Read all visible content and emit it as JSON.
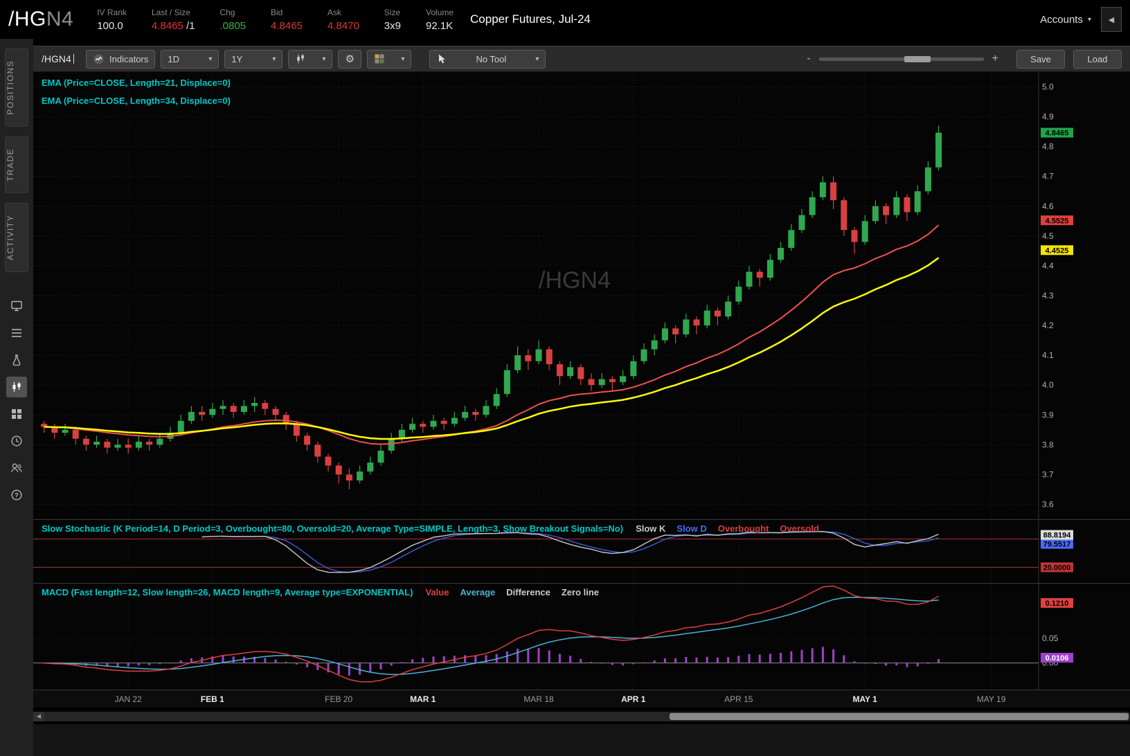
{
  "header": {
    "symbol_root": "/HG",
    "symbol_suffix": "N4",
    "stats": [
      {
        "label": "IV Rank",
        "value": "100.0",
        "color": "#e8e8e8"
      },
      {
        "label": "Last / Size",
        "value": "4.8465",
        "suffix": "/1",
        "color": "#e03535"
      },
      {
        "label": "Chg",
        "value": ".0805",
        "color": "#3cb53c"
      },
      {
        "label": "Bid",
        "value": "4.8465",
        "color": "#e03535"
      },
      {
        "label": "Ask",
        "value": "4.8470",
        "color": "#e03535"
      },
      {
        "label": "Size",
        "value": "3x9",
        "color": "#e8e8e8"
      },
      {
        "label": "Volume",
        "value": "92.1K",
        "color": "#e8e8e8"
      }
    ],
    "description": "Copper Futures, Jul-24",
    "accounts_label": "Accounts"
  },
  "sidebar": {
    "tabs": [
      {
        "label": "POSITIONS"
      },
      {
        "label": "TRADE"
      },
      {
        "label": "ACTIVITY"
      }
    ],
    "icons": [
      {
        "name": "news",
        "active": false
      },
      {
        "name": "list",
        "active": false
      },
      {
        "name": "flask",
        "active": false
      },
      {
        "name": "charts",
        "active": true
      },
      {
        "name": "grid",
        "active": false
      },
      {
        "name": "clock",
        "active": false
      },
      {
        "name": "people",
        "active": false
      },
      {
        "name": "help",
        "active": false
      }
    ]
  },
  "toolbar": {
    "symbol_input": "/HGN4",
    "indicators_label": "Indicators",
    "timeframe": "1D",
    "range": "1Y",
    "no_tool_label": "No Tool",
    "zoom_minus": "-",
    "zoom_plus": "+",
    "save_label": "Save",
    "load_label": "Load"
  },
  "chart_data": {
    "type": "candlestick",
    "watermark": "/HGN4",
    "study_label_color": "#00c8c8",
    "studies_labels": [
      "EMA (Price=CLOSE, Length=21, Displace=0)",
      "EMA (Price=CLOSE, Length=34, Displace=0)"
    ],
    "up_color": "#2fa84f",
    "down_color": "#d94040",
    "ema21_period": 21,
    "ema34_period": 34,
    "ema21_color": "#f05050",
    "ema34_color": "#ffff00",
    "price_axis": {
      "min": 3.55,
      "max": 5.05,
      "ticks": [
        "5.0",
        "4.9",
        "4.8",
        "4.7",
        "4.6",
        "4.5",
        "4.4",
        "4.3",
        "4.2",
        "4.1",
        "4.0",
        "3.9",
        "3.8",
        "3.7",
        "3.6"
      ]
    },
    "total_slots": 95,
    "time_labels": [
      {
        "label": "JAN 22",
        "slot": 8,
        "bold": false
      },
      {
        "label": "FEB 1",
        "slot": 16,
        "bold": true
      },
      {
        "label": "FEB 20",
        "slot": 28,
        "bold": false
      },
      {
        "label": "MAR 1",
        "slot": 36,
        "bold": true
      },
      {
        "label": "MAR 18",
        "slot": 47,
        "bold": false
      },
      {
        "label": "APR 1",
        "slot": 56,
        "bold": true
      },
      {
        "label": "APR 15",
        "slot": 66,
        "bold": false
      },
      {
        "label": "MAY 1",
        "slot": 78,
        "bold": true
      },
      {
        "label": "MAY 19",
        "slot": 90,
        "bold": false
      }
    ],
    "candles": [
      [
        3.87,
        3.88,
        3.84,
        3.86
      ],
      [
        3.86,
        3.87,
        3.82,
        3.84
      ],
      [
        3.84,
        3.87,
        3.83,
        3.85
      ],
      [
        3.85,
        3.86,
        3.8,
        3.82
      ],
      [
        3.82,
        3.83,
        3.78,
        3.8
      ],
      [
        3.8,
        3.83,
        3.79,
        3.81
      ],
      [
        3.81,
        3.82,
        3.77,
        3.79
      ],
      [
        3.79,
        3.82,
        3.78,
        3.8
      ],
      [
        3.8,
        3.82,
        3.77,
        3.79
      ],
      [
        3.79,
        3.83,
        3.78,
        3.81
      ],
      [
        3.81,
        3.82,
        3.78,
        3.8
      ],
      [
        3.8,
        3.84,
        3.79,
        3.82
      ],
      [
        3.82,
        3.86,
        3.81,
        3.84
      ],
      [
        3.84,
        3.9,
        3.83,
        3.88
      ],
      [
        3.88,
        3.93,
        3.87,
        3.91
      ],
      [
        3.91,
        3.93,
        3.88,
        3.9
      ],
      [
        3.9,
        3.94,
        3.89,
        3.92
      ],
      [
        3.92,
        3.95,
        3.9,
        3.93
      ],
      [
        3.93,
        3.94,
        3.89,
        3.91
      ],
      [
        3.91,
        3.95,
        3.9,
        3.93
      ],
      [
        3.93,
        3.96,
        3.91,
        3.94
      ],
      [
        3.94,
        3.95,
        3.9,
        3.92
      ],
      [
        3.92,
        3.93,
        3.88,
        3.9
      ],
      [
        3.9,
        3.91,
        3.85,
        3.87
      ],
      [
        3.87,
        3.88,
        3.81,
        3.83
      ],
      [
        3.83,
        3.84,
        3.78,
        3.8
      ],
      [
        3.8,
        3.81,
        3.74,
        3.76
      ],
      [
        3.76,
        3.77,
        3.71,
        3.73
      ],
      [
        3.73,
        3.74,
        3.67,
        3.7
      ],
      [
        3.7,
        3.72,
        3.65,
        3.68
      ],
      [
        3.68,
        3.73,
        3.67,
        3.71
      ],
      [
        3.71,
        3.76,
        3.7,
        3.74
      ],
      [
        3.74,
        3.8,
        3.73,
        3.78
      ],
      [
        3.78,
        3.84,
        3.77,
        3.82
      ],
      [
        3.82,
        3.87,
        3.81,
        3.85
      ],
      [
        3.85,
        3.89,
        3.84,
        3.87
      ],
      [
        3.87,
        3.88,
        3.84,
        3.86
      ],
      [
        3.86,
        3.9,
        3.85,
        3.88
      ],
      [
        3.88,
        3.89,
        3.85,
        3.87
      ],
      [
        3.87,
        3.91,
        3.86,
        3.89
      ],
      [
        3.89,
        3.93,
        3.88,
        3.91
      ],
      [
        3.91,
        3.92,
        3.88,
        3.9
      ],
      [
        3.9,
        3.95,
        3.89,
        3.93
      ],
      [
        3.93,
        3.99,
        3.92,
        3.97
      ],
      [
        3.97,
        4.07,
        3.96,
        4.05
      ],
      [
        4.05,
        4.13,
        4.04,
        4.1
      ],
      [
        4.1,
        4.12,
        4.05,
        4.08
      ],
      [
        4.08,
        4.15,
        4.07,
        4.12
      ],
      [
        4.12,
        4.13,
        4.05,
        4.07
      ],
      [
        4.07,
        4.08,
        4.0,
        4.03
      ],
      [
        4.03,
        4.08,
        4.02,
        4.06
      ],
      [
        4.06,
        4.07,
        4.0,
        4.02
      ],
      [
        4.02,
        4.04,
        3.98,
        4.0
      ],
      [
        4.0,
        4.04,
        3.99,
        4.02
      ],
      [
        4.02,
        4.03,
        3.98,
        4.01
      ],
      [
        4.01,
        4.05,
        4.0,
        4.03
      ],
      [
        4.03,
        4.1,
        4.02,
        4.08
      ],
      [
        4.08,
        4.14,
        4.07,
        4.12
      ],
      [
        4.12,
        4.17,
        4.1,
        4.15
      ],
      [
        4.15,
        4.21,
        4.14,
        4.19
      ],
      [
        4.19,
        4.2,
        4.14,
        4.17
      ],
      [
        4.17,
        4.24,
        4.16,
        4.22
      ],
      [
        4.22,
        4.23,
        4.17,
        4.2
      ],
      [
        4.2,
        4.27,
        4.19,
        4.25
      ],
      [
        4.25,
        4.26,
        4.2,
        4.23
      ],
      [
        4.23,
        4.3,
        4.22,
        4.28
      ],
      [
        4.28,
        4.35,
        4.27,
        4.33
      ],
      [
        4.33,
        4.4,
        4.32,
        4.38
      ],
      [
        4.38,
        4.39,
        4.33,
        4.36
      ],
      [
        4.36,
        4.44,
        4.35,
        4.42
      ],
      [
        4.42,
        4.48,
        4.41,
        4.46
      ],
      [
        4.46,
        4.54,
        4.45,
        4.52
      ],
      [
        4.52,
        4.59,
        4.51,
        4.57
      ],
      [
        4.57,
        4.65,
        4.56,
        4.63
      ],
      [
        4.63,
        4.7,
        4.62,
        4.68
      ],
      [
        4.68,
        4.7,
        4.59,
        4.62
      ],
      [
        4.62,
        4.63,
        4.5,
        4.52
      ],
      [
        4.52,
        4.53,
        4.44,
        4.48
      ],
      [
        4.48,
        4.57,
        4.47,
        4.55
      ],
      [
        4.55,
        4.62,
        4.54,
        4.6
      ],
      [
        4.6,
        4.61,
        4.54,
        4.57
      ],
      [
        4.57,
        4.65,
        4.56,
        4.63
      ],
      [
        4.63,
        4.64,
        4.55,
        4.58
      ],
      [
        4.58,
        4.67,
        4.57,
        4.65
      ],
      [
        4.65,
        4.75,
        4.64,
        4.73
      ],
      [
        4.73,
        4.87,
        4.72,
        4.8465
      ]
    ],
    "price_marker_labels": [
      {
        "value": "4.8465",
        "bg": "#1fa54a",
        "fg": "#000000"
      },
      {
        "value": "4.5525",
        "bg": "#e04040",
        "fg": "#000000"
      },
      {
        "value": "4.4525",
        "bg": "#f5e600",
        "fg": "#000000"
      }
    ],
    "stochastic": {
      "label": "Slow Stochastic (K Period=14, D Period=3, Overbought=80, Oversold=20, Average Type=SIMPLE, Length=3, Show Breakout Signals=No)",
      "legend": [
        {
          "label": "Slow K",
          "color": "#c8c8c8"
        },
        {
          "label": "Slow D",
          "color": "#4a6aff"
        },
        {
          "label": "Overbought",
          "color": "#d04040"
        },
        {
          "label": "Oversold",
          "color": "#d04040"
        }
      ],
      "k_period": 14,
      "d_period": 3,
      "smooth": 3,
      "overbought": 80,
      "oversold": 20,
      "k_color": "#c8c8c8",
      "d_color": "#3a5fd9",
      "band_color": "#b03030",
      "right_labels": {
        "overbought": {
          "value": "80.0000",
          "bg": "#c03535",
          "fg": "#000000"
        },
        "oversold": {
          "value": "20.0000",
          "bg": "#c03535",
          "fg": "#000000"
        },
        "slow_d": {
          "value": "79.5517",
          "bg": "#4a6aff",
          "fg": "#000000"
        },
        "slow_k": {
          "value": "88.8194",
          "bg": "#dcdcdc",
          "fg": "#000000"
        }
      }
    },
    "macd": {
      "label": "MACD (Fast length=12, Slow length=26, MACD length=9, Average type=EXPONENTIAL)",
      "legend": [
        {
          "label": "Value",
          "color": "#e04040"
        },
        {
          "label": "Average",
          "color": "#4ab3d9"
        },
        {
          "label": "Difference",
          "color": "#cccccc"
        },
        {
          "label": "Zero line",
          "color": "#cccccc"
        }
      ],
      "fast": 12,
      "slow": 26,
      "signal": 9,
      "value_color": "#e04040",
      "average_color": "#4ab3d9",
      "hist_color": "#a040cc",
      "axis_ticks": [
        "0.05",
        "0.00"
      ],
      "right_labels": [
        {
          "value": "0.1210",
          "bg": "#e04040",
          "fg": "#000000"
        },
        {
          "value": "0.0106",
          "bg": "#a040cc",
          "fg": "#ffffff"
        }
      ]
    }
  }
}
